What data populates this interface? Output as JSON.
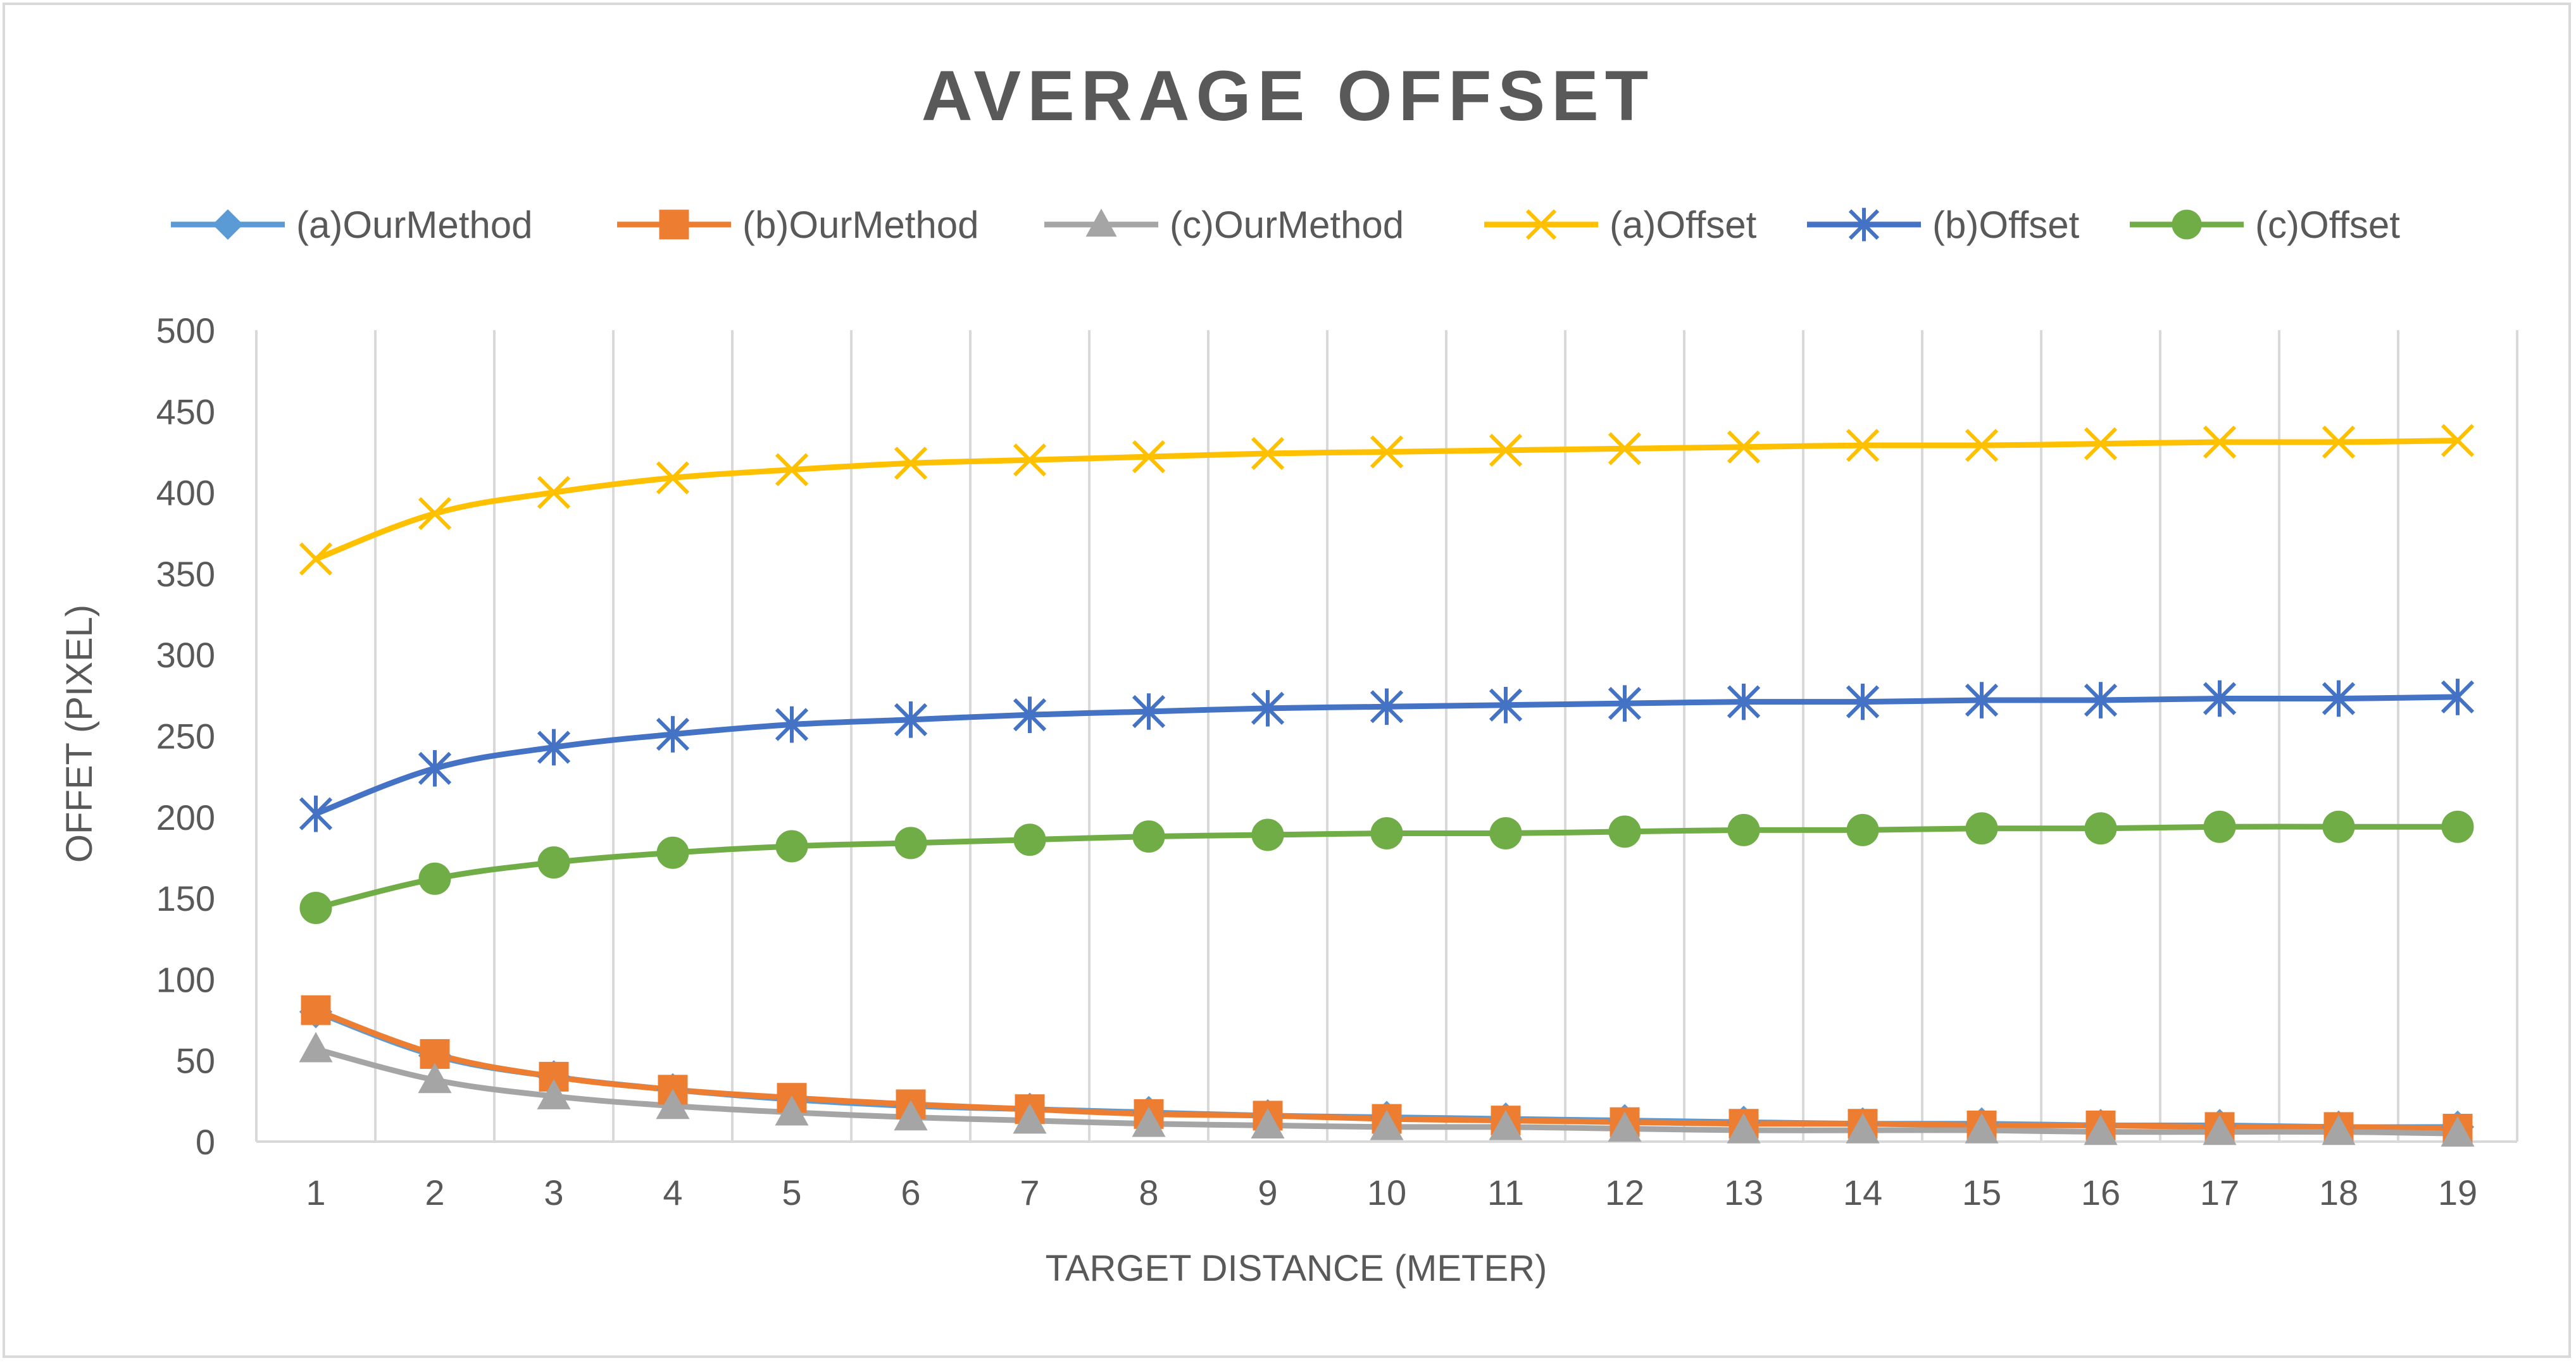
{
  "chart_data": {
    "type": "line",
    "title": "AVERAGE OFFSET",
    "xlabel": "TARGET DISTANCE (METER)",
    "ylabel": "OFFET (PIXEL)",
    "x": [
      1,
      2,
      3,
      4,
      5,
      6,
      7,
      8,
      9,
      10,
      11,
      12,
      13,
      14,
      15,
      16,
      17,
      18,
      19
    ],
    "ylim": [
      0,
      500
    ],
    "yticks": [
      0,
      50,
      100,
      150,
      200,
      250,
      300,
      350,
      400,
      450,
      500
    ],
    "grid": "vertical",
    "legend": "top",
    "series": [
      {
        "name": "(a)OurMethod",
        "color": "#5b9bd5",
        "marker": "diamond",
        "values": [
          80,
          53,
          40,
          32,
          26,
          22,
          20,
          18,
          16,
          15,
          14,
          13,
          12,
          11,
          11,
          10,
          10,
          9,
          9
        ]
      },
      {
        "name": "(b)OurMethod",
        "color": "#ed7d31",
        "marker": "square",
        "values": [
          81,
          54,
          40,
          32,
          27,
          23,
          20,
          17,
          16,
          14,
          13,
          12,
          11,
          11,
          10,
          10,
          9,
          9,
          8
        ]
      },
      {
        "name": "(c)OurMethod",
        "color": "#a5a5a5",
        "marker": "triangle",
        "values": [
          57,
          38,
          28,
          22,
          18,
          15,
          13,
          11,
          10,
          9,
          9,
          8,
          7,
          7,
          7,
          6,
          6,
          6,
          5
        ]
      },
      {
        "name": "(a)Offset",
        "color": "#ffc000",
        "marker": "x",
        "values": [
          359,
          387,
          400,
          409,
          414,
          418,
          420,
          422,
          424,
          425,
          426,
          427,
          428,
          429,
          429,
          430,
          431,
          431,
          432
        ]
      },
      {
        "name": "(b)Offset",
        "color": "#4472c4",
        "marker": "star",
        "values": [
          202,
          230,
          243,
          251,
          257,
          260,
          263,
          265,
          267,
          268,
          269,
          270,
          271,
          271,
          272,
          272,
          273,
          273,
          274
        ]
      },
      {
        "name": "(c)Offset",
        "color": "#70ad47",
        "marker": "circle",
        "values": [
          144,
          162,
          172,
          178,
          182,
          184,
          186,
          188,
          189,
          190,
          190,
          191,
          192,
          192,
          193,
          193,
          194,
          194,
          194
        ]
      }
    ]
  }
}
